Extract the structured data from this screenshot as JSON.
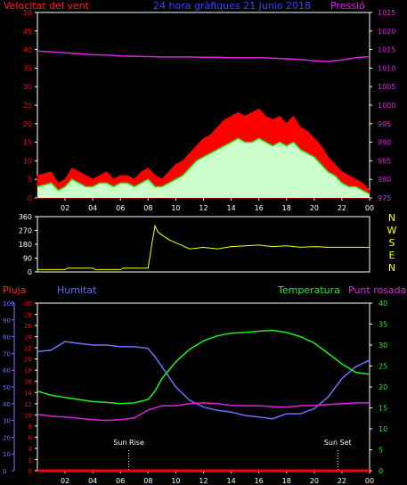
{
  "colors": {
    "red": "#ff0000",
    "blue": "#7070ff",
    "green": "#22ee22",
    "magenta": "#e020e0",
    "yellow": "#ffff00",
    "white": "#ffffff",
    "lightgreen": "#ccffcc",
    "frame": "#ffffff"
  },
  "chart_data": [
    {
      "type": "line",
      "id": "wind",
      "title": "24 hora gràfiques  21 Junio 2018",
      "left_axis_label": "Velocitat del vent",
      "right_axis_label": "Pressió",
      "left_ticks": [
        "0",
        "5",
        "10",
        "15",
        "20",
        "25",
        "30",
        "35",
        "40",
        "45",
        "50"
      ],
      "left_range": [
        0,
        50
      ],
      "right_ticks": [
        "975",
        "980",
        "985",
        "990",
        "995",
        "1000",
        "1005",
        "1010",
        "1015",
        "1020",
        "1025"
      ],
      "right_range": [
        975,
        1025
      ],
      "x_ticks": [
        "02",
        "04",
        "06",
        "08",
        "10",
        "12",
        "14",
        "16",
        "18",
        "20",
        "22",
        "00"
      ],
      "x_range": [
        0,
        24
      ],
      "series": [
        {
          "name": "Pressió",
          "axis": "right",
          "color": "magenta",
          "x": [
            0,
            1,
            2,
            3,
            4,
            5,
            6,
            7,
            8,
            9,
            10,
            11,
            12,
            13,
            14,
            15,
            16,
            17,
            18,
            19,
            20,
            21,
            22,
            23,
            24
          ],
          "values": [
            1014.6,
            1014.4,
            1014.1,
            1013.9,
            1013.6,
            1013.5,
            1013.3,
            1013.2,
            1013.1,
            1013.0,
            1013.0,
            1013.0,
            1012.9,
            1012.9,
            1012.8,
            1012.8,
            1012.8,
            1012.7,
            1012.5,
            1012.3,
            1012.0,
            1011.8,
            1012.2,
            1012.8,
            1013.1
          ]
        },
        {
          "name": "gust",
          "axis": "left",
          "color": "red",
          "x": [
            0,
            1,
            1.5,
            2,
            2.5,
            3,
            3.5,
            4,
            4.5,
            5,
            5.5,
            6,
            6.5,
            7,
            7.5,
            8,
            8.5,
            9,
            9.5,
            10,
            10.5,
            11,
            11.5,
            12,
            12.5,
            13,
            13.5,
            14,
            14.5,
            15,
            15.5,
            16,
            16.5,
            17,
            17.5,
            18,
            18.5,
            19,
            19.5,
            20,
            20.5,
            21,
            21.5,
            22,
            22.5,
            23,
            23.5,
            24
          ],
          "values": [
            6,
            7,
            4,
            5,
            8,
            7,
            6,
            5,
            6,
            7,
            5,
            6,
            6,
            5,
            7,
            8,
            6,
            5,
            7,
            9,
            10,
            12,
            14,
            16,
            17,
            19,
            21,
            22,
            23,
            22,
            23,
            24,
            22,
            21,
            22,
            20,
            22,
            19,
            18,
            16,
            14,
            11,
            9,
            7,
            6,
            5,
            4,
            2
          ]
        },
        {
          "name": "mitjana",
          "axis": "left",
          "color": "green",
          "x": [
            0,
            1,
            1.5,
            2,
            2.5,
            3,
            3.5,
            4,
            4.5,
            5,
            5.5,
            6,
            6.5,
            7,
            7.5,
            8,
            8.5,
            9,
            9.5,
            10,
            10.5,
            11,
            11.5,
            12,
            12.5,
            13,
            13.5,
            14,
            14.5,
            15,
            15.5,
            16,
            16.5,
            17,
            17.5,
            18,
            18.5,
            19,
            19.5,
            20,
            20.5,
            21,
            21.5,
            22,
            22.5,
            23,
            23.5,
            24
          ],
          "values": [
            3,
            4,
            2,
            3,
            5,
            4,
            3,
            3,
            4,
            4,
            3,
            4,
            4,
            3,
            4,
            5,
            3,
            3,
            4,
            5,
            6,
            8,
            10,
            11,
            12,
            13,
            14,
            15,
            16,
            15,
            15,
            16,
            15,
            14,
            15,
            14,
            15,
            13,
            12,
            11,
            9,
            7,
            6,
            4,
            3,
            3,
            2,
            1
          ]
        }
      ]
    },
    {
      "type": "line",
      "id": "direction",
      "left_ticks": [
        "0",
        "90",
        "180",
        "270",
        "360"
      ],
      "left_range": [
        0,
        360
      ],
      "right_labels": [
        "N",
        "W",
        "S",
        "E",
        "N"
      ],
      "series": [
        {
          "name": "direcció",
          "color": "yellow",
          "x": [
            0,
            2,
            2.2,
            4,
            4.2,
            6,
            6.2,
            8,
            8.3,
            8.5,
            8.7,
            9,
            9.5,
            10,
            10.5,
            11,
            12,
            13,
            14,
            15,
            16,
            17,
            18,
            19,
            20,
            21,
            22,
            24
          ],
          "values": [
            15,
            15,
            25,
            25,
            15,
            15,
            25,
            25,
            200,
            300,
            260,
            240,
            210,
            190,
            170,
            150,
            160,
            150,
            165,
            170,
            175,
            165,
            170,
            160,
            165,
            160,
            160,
            160
          ]
        }
      ]
    },
    {
      "type": "line",
      "id": "temp",
      "left_axis_label": "Pluja",
      "left2_axis_label": "Humitat",
      "right_axis_label": "Temperatura",
      "right2_axis_label": "Punt rosada",
      "humidity_ticks": [
        "0",
        "10",
        "20",
        "30",
        "40",
        "50",
        "60",
        "70",
        "80",
        "90",
        "100"
      ],
      "humidity_range": [
        0,
        100
      ],
      "rain_ticks": [
        "0",
        "2",
        "4",
        "6",
        "8",
        "10",
        "12",
        "14",
        "16",
        "18",
        "20",
        "22",
        "24",
        "26",
        "28",
        "30"
      ],
      "rain_range": [
        0,
        30
      ],
      "temp_ticks": [
        "0",
        "5",
        "10",
        "15",
        "20",
        "25",
        "30",
        "35",
        "40"
      ],
      "temp_range": [
        0,
        40
      ],
      "x_ticks": [
        "02",
        "04",
        "06",
        "08",
        "10",
        "12",
        "14",
        "16",
        "18",
        "20",
        "22",
        "00"
      ],
      "annotations": [
        {
          "label": "Sun Rise",
          "x": 6.6
        },
        {
          "label": "Sun Set",
          "x": 21.7
        }
      ],
      "series": [
        {
          "name": "Humitat",
          "color": "blue",
          "x": [
            0,
            1,
            2,
            3,
            4,
            5,
            6,
            7,
            8,
            8.5,
            9,
            10,
            11,
            12,
            13,
            14,
            15,
            16,
            17,
            18,
            19,
            20,
            21,
            22,
            23,
            24
          ],
          "values": [
            71,
            72,
            77,
            76,
            75,
            75,
            74,
            74,
            73,
            68,
            62,
            50,
            42,
            38,
            36,
            35,
            33,
            32,
            31,
            34,
            34,
            37,
            44,
            55,
            62,
            66
          ]
        },
        {
          "name": "Temperatura",
          "color": "green",
          "x": [
            0,
            1,
            2,
            3,
            4,
            5,
            6,
            7,
            8,
            8.5,
            9,
            10,
            11,
            12,
            13,
            14,
            15,
            16,
            17,
            18,
            19,
            20,
            21,
            22,
            23,
            24
          ],
          "values": [
            19,
            18,
            17.5,
            17,
            16.5,
            16.3,
            16,
            16.2,
            17,
            19,
            22,
            26,
            29,
            31,
            32.2,
            32.8,
            33,
            33.3,
            33.5,
            33,
            32,
            30.5,
            28,
            25.5,
            23.5,
            23
          ]
        },
        {
          "name": "Punt rosada",
          "color": "magenta",
          "x": [
            0,
            1,
            2,
            3,
            4,
            5,
            6,
            7,
            8,
            9,
            10,
            11,
            12,
            13,
            14,
            15,
            16,
            17,
            18,
            19,
            20,
            21,
            22,
            23,
            24
          ],
          "values": [
            13.5,
            13,
            12.8,
            12.5,
            12.2,
            12,
            12.2,
            12.6,
            14.5,
            15.5,
            15.5,
            16,
            16.2,
            16,
            15.6,
            15.5,
            15.5,
            15.3,
            15.2,
            15.5,
            15.6,
            15.8,
            16,
            16.2,
            16.2
          ]
        },
        {
          "name": "Pluja",
          "color": "red",
          "x": [
            0,
            24
          ],
          "values": [
            0,
            0
          ]
        }
      ]
    }
  ]
}
